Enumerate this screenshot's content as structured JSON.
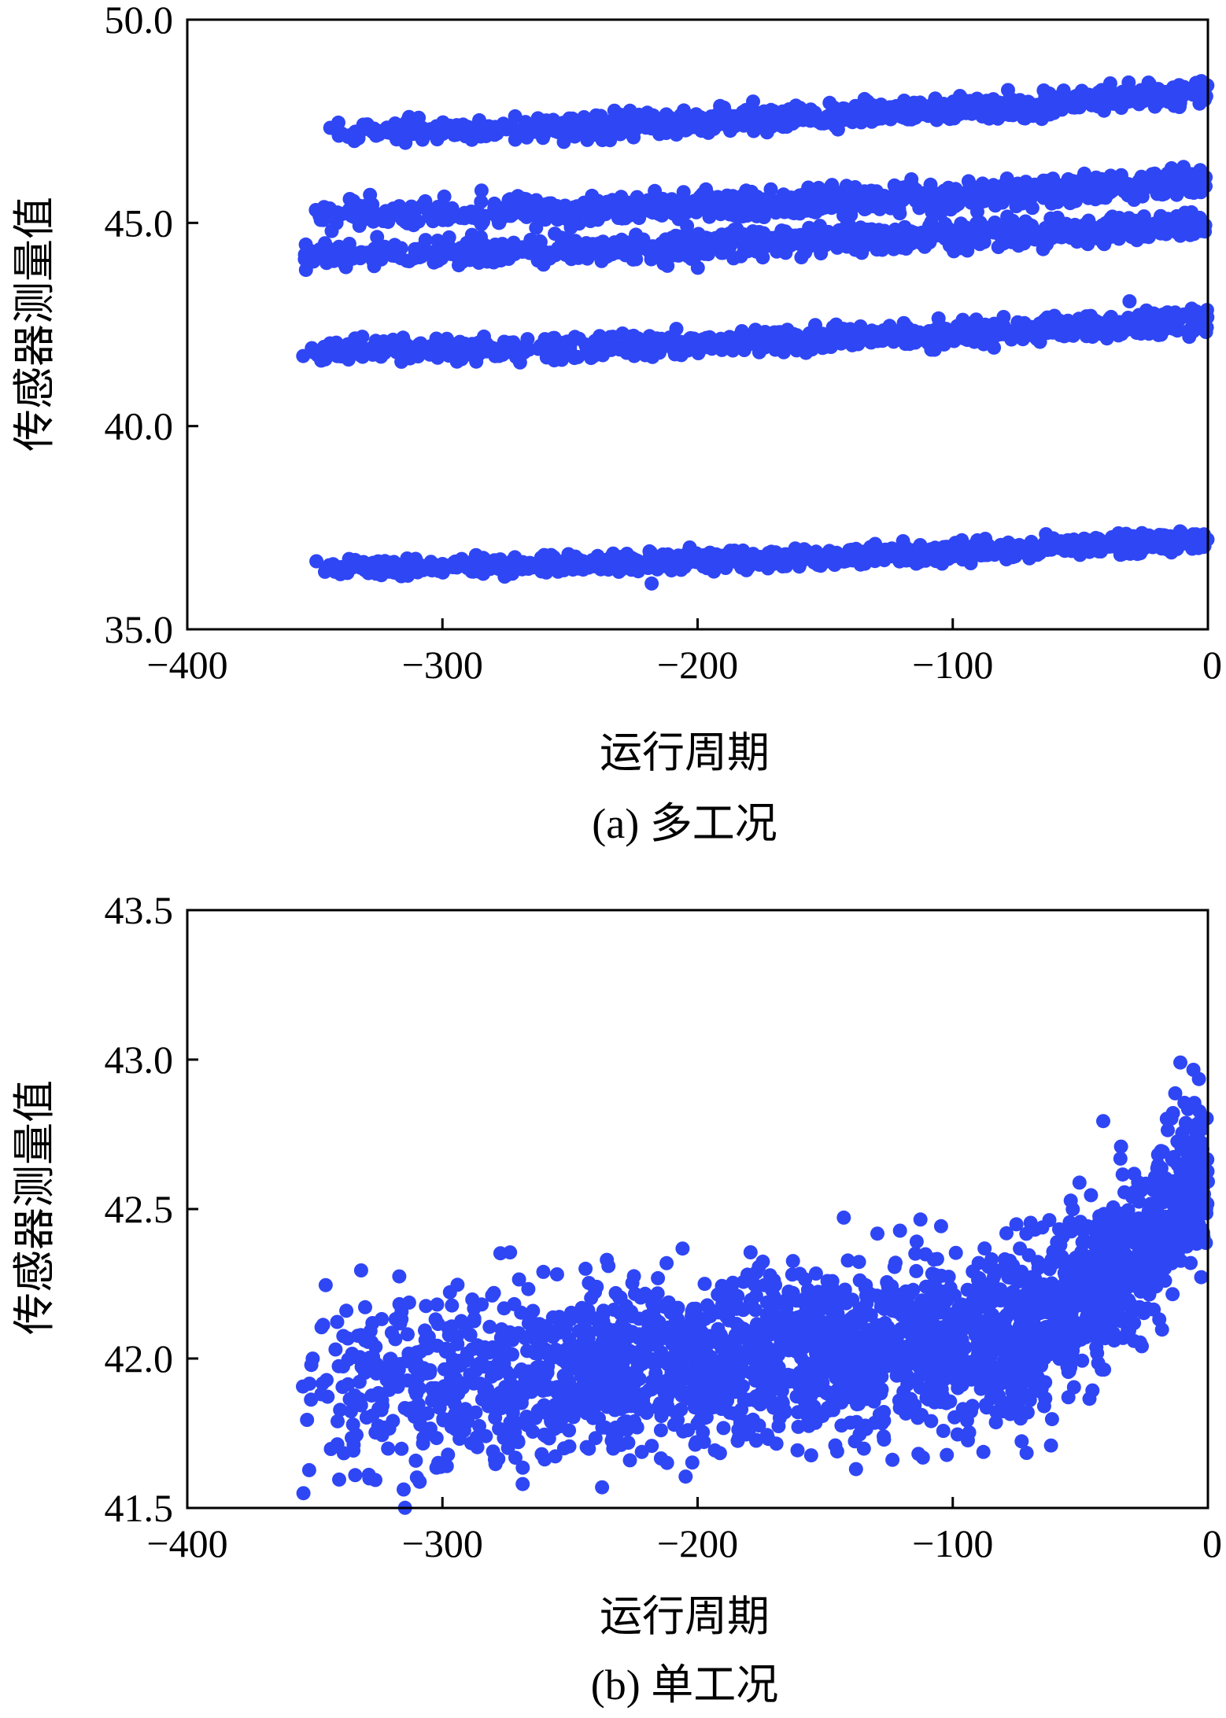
{
  "chart_data": [
    {
      "panel": "a",
      "type": "scatter",
      "caption": "(a) 多工况",
      "xlabel": "运行周期",
      "ylabel": "传感器测量值",
      "xlim": [
        -400,
        0
      ],
      "ylim": [
        35.0,
        50.0
      ],
      "xticks": [
        -400,
        -300,
        -200,
        -100,
        0
      ],
      "xtick_labels": [
        "−400",
        "−300",
        "−200",
        "−100",
        "0"
      ],
      "yticks": [
        35.0,
        40.0,
        45.0,
        50.0
      ],
      "ytick_labels": [
        "35.0",
        "40.0",
        "45.0",
        "50.0"
      ],
      "grid": false,
      "legend": "none",
      "marker_color": "#2f46f5",
      "series": [
        {
          "x_start": -345,
          "x_end": 0,
          "y_start": 47.2,
          "y_end": 48.2,
          "spread": 0.3
        },
        {
          "x_start": -350,
          "x_end": 0,
          "y_start": 45.2,
          "y_end": 46.0,
          "spread": 0.35
        },
        {
          "x_start": -355,
          "x_end": 0,
          "y_start": 44.2,
          "y_end": 45.0,
          "spread": 0.35
        },
        {
          "x_start": -355,
          "x_end": 0,
          "y_start": 41.8,
          "y_end": 42.6,
          "spread": 0.3
        },
        {
          "x_start": -350,
          "x_end": 0,
          "y_start": 36.5,
          "y_end": 37.2,
          "spread": 0.25
        }
      ]
    },
    {
      "panel": "b",
      "type": "scatter",
      "caption": "(b) 单工况",
      "xlabel": "运行周期",
      "ylabel": "传感器测量值",
      "xlim": [
        -400,
        0
      ],
      "ylim": [
        41.5,
        43.5
      ],
      "xticks": [
        -400,
        -300,
        -200,
        -100,
        0
      ],
      "xtick_labels": [
        "−400",
        "−300",
        "−200",
        "−100",
        "0"
      ],
      "yticks": [
        41.5,
        42.0,
        42.5,
        43.0,
        43.5
      ],
      "ytick_labels": [
        "41.5",
        "42.0",
        "42.5",
        "43.0",
        "43.5"
      ],
      "grid": false,
      "legend": "none",
      "marker_color": "#2f46f5",
      "trend": {
        "x_start": -355,
        "x_end": 0,
        "y_at_start": 41.9,
        "y_at_minus_100": 42.05,
        "y_at_end": 42.65,
        "spread": 0.28
      }
    }
  ]
}
